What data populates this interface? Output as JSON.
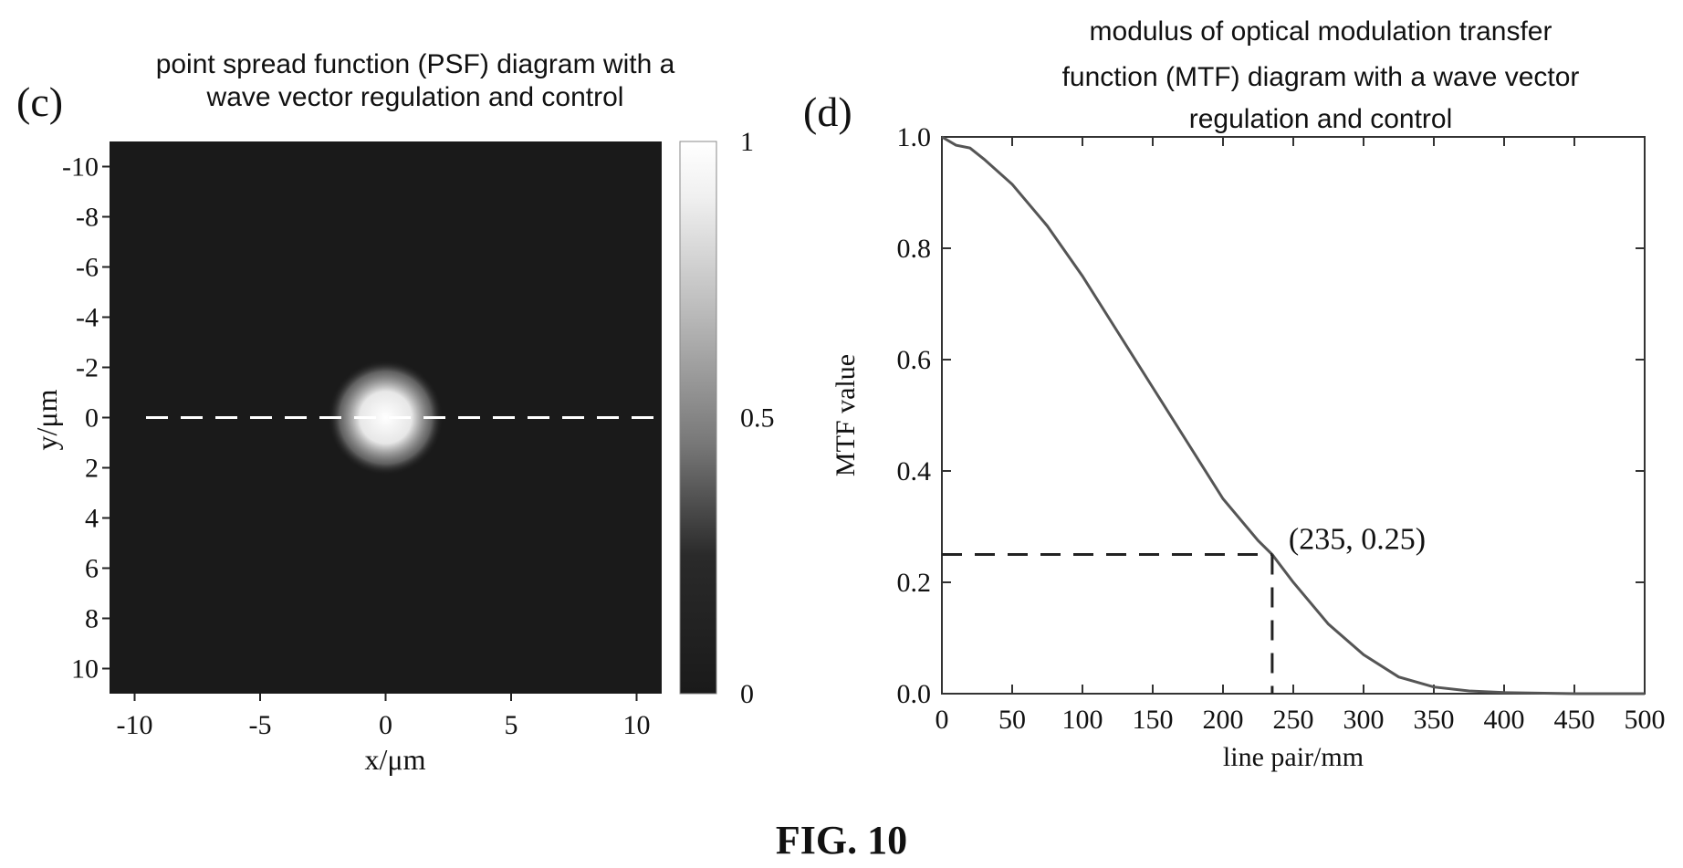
{
  "figure_caption": "FIG. 10",
  "chart_data": [
    {
      "type": "heatmap",
      "panel_label": "(c)",
      "title_lines": [
        "point spread function (PSF) diagram with a",
        "wave vector regulation and control"
      ],
      "xlabel": "x/μm",
      "ylabel": "y/μm",
      "xlim": [
        -11,
        11
      ],
      "ylim": [
        -11,
        11
      ],
      "x_ticks": [
        -10,
        -5,
        0,
        5,
        10
      ],
      "x_tick_labels": [
        "-10",
        "-5",
        "0",
        "5",
        "10"
      ],
      "y_ticks": [
        -10,
        -8,
        -6,
        -4,
        -2,
        0,
        2,
        4,
        6,
        8,
        10
      ],
      "y_tick_labels": [
        "-10",
        "-8",
        "-6",
        "-4",
        "-2",
        "0",
        "2",
        "4",
        "6",
        "8",
        "10"
      ],
      "y_axis_reversed": true,
      "peak": {
        "x": 0,
        "y": 0,
        "value": 1
      },
      "spot_radius": 2,
      "dashed_line_y": 0,
      "colorbar": {
        "min": 0,
        "max": 1,
        "ticks": [
          0,
          0.5,
          1
        ],
        "tick_labels": [
          "0",
          "0.5",
          "1"
        ],
        "low_color": "#1a1a1a",
        "high_color": "#ffffff"
      }
    },
    {
      "type": "line",
      "panel_label": "(d)",
      "title_lines": [
        "modulus of optical modulation transfer",
        "function (MTF) diagram with a wave vector",
        "regulation and control"
      ],
      "xlabel": "line pair/mm",
      "ylabel": "MTF value",
      "xlim": [
        0,
        500
      ],
      "ylim": [
        0,
        1.0
      ],
      "x_ticks": [
        0,
        50,
        100,
        150,
        200,
        250,
        300,
        350,
        400,
        450,
        500
      ],
      "x_tick_labels": [
        "0",
        "50",
        "100",
        "150",
        "200",
        "250",
        "300",
        "350",
        "400",
        "450",
        "500"
      ],
      "y_ticks": [
        0,
        0.2,
        0.4,
        0.6,
        0.8,
        1.0
      ],
      "y_tick_labels": [
        "0.0",
        "0.2",
        "0.4",
        "0.6",
        "0.8",
        "1.0"
      ],
      "grid": false,
      "series": [
        {
          "x": [
            0,
            10,
            20,
            30,
            50,
            75,
            100,
            125,
            150,
            175,
            200,
            225,
            235,
            250,
            275,
            300,
            325,
            350,
            375,
            400,
            450,
            500
          ],
          "y": [
            1.0,
            0.985,
            0.98,
            0.96,
            0.915,
            0.84,
            0.75,
            0.65,
            0.55,
            0.45,
            0.35,
            0.275,
            0.25,
            0.2,
            0.125,
            0.07,
            0.03,
            0.012,
            0.005,
            0.002,
            0.0,
            0.0
          ]
        }
      ],
      "annotation": {
        "x": 235,
        "y": 0.25,
        "text": "(235, 0.25)"
      }
    }
  ]
}
